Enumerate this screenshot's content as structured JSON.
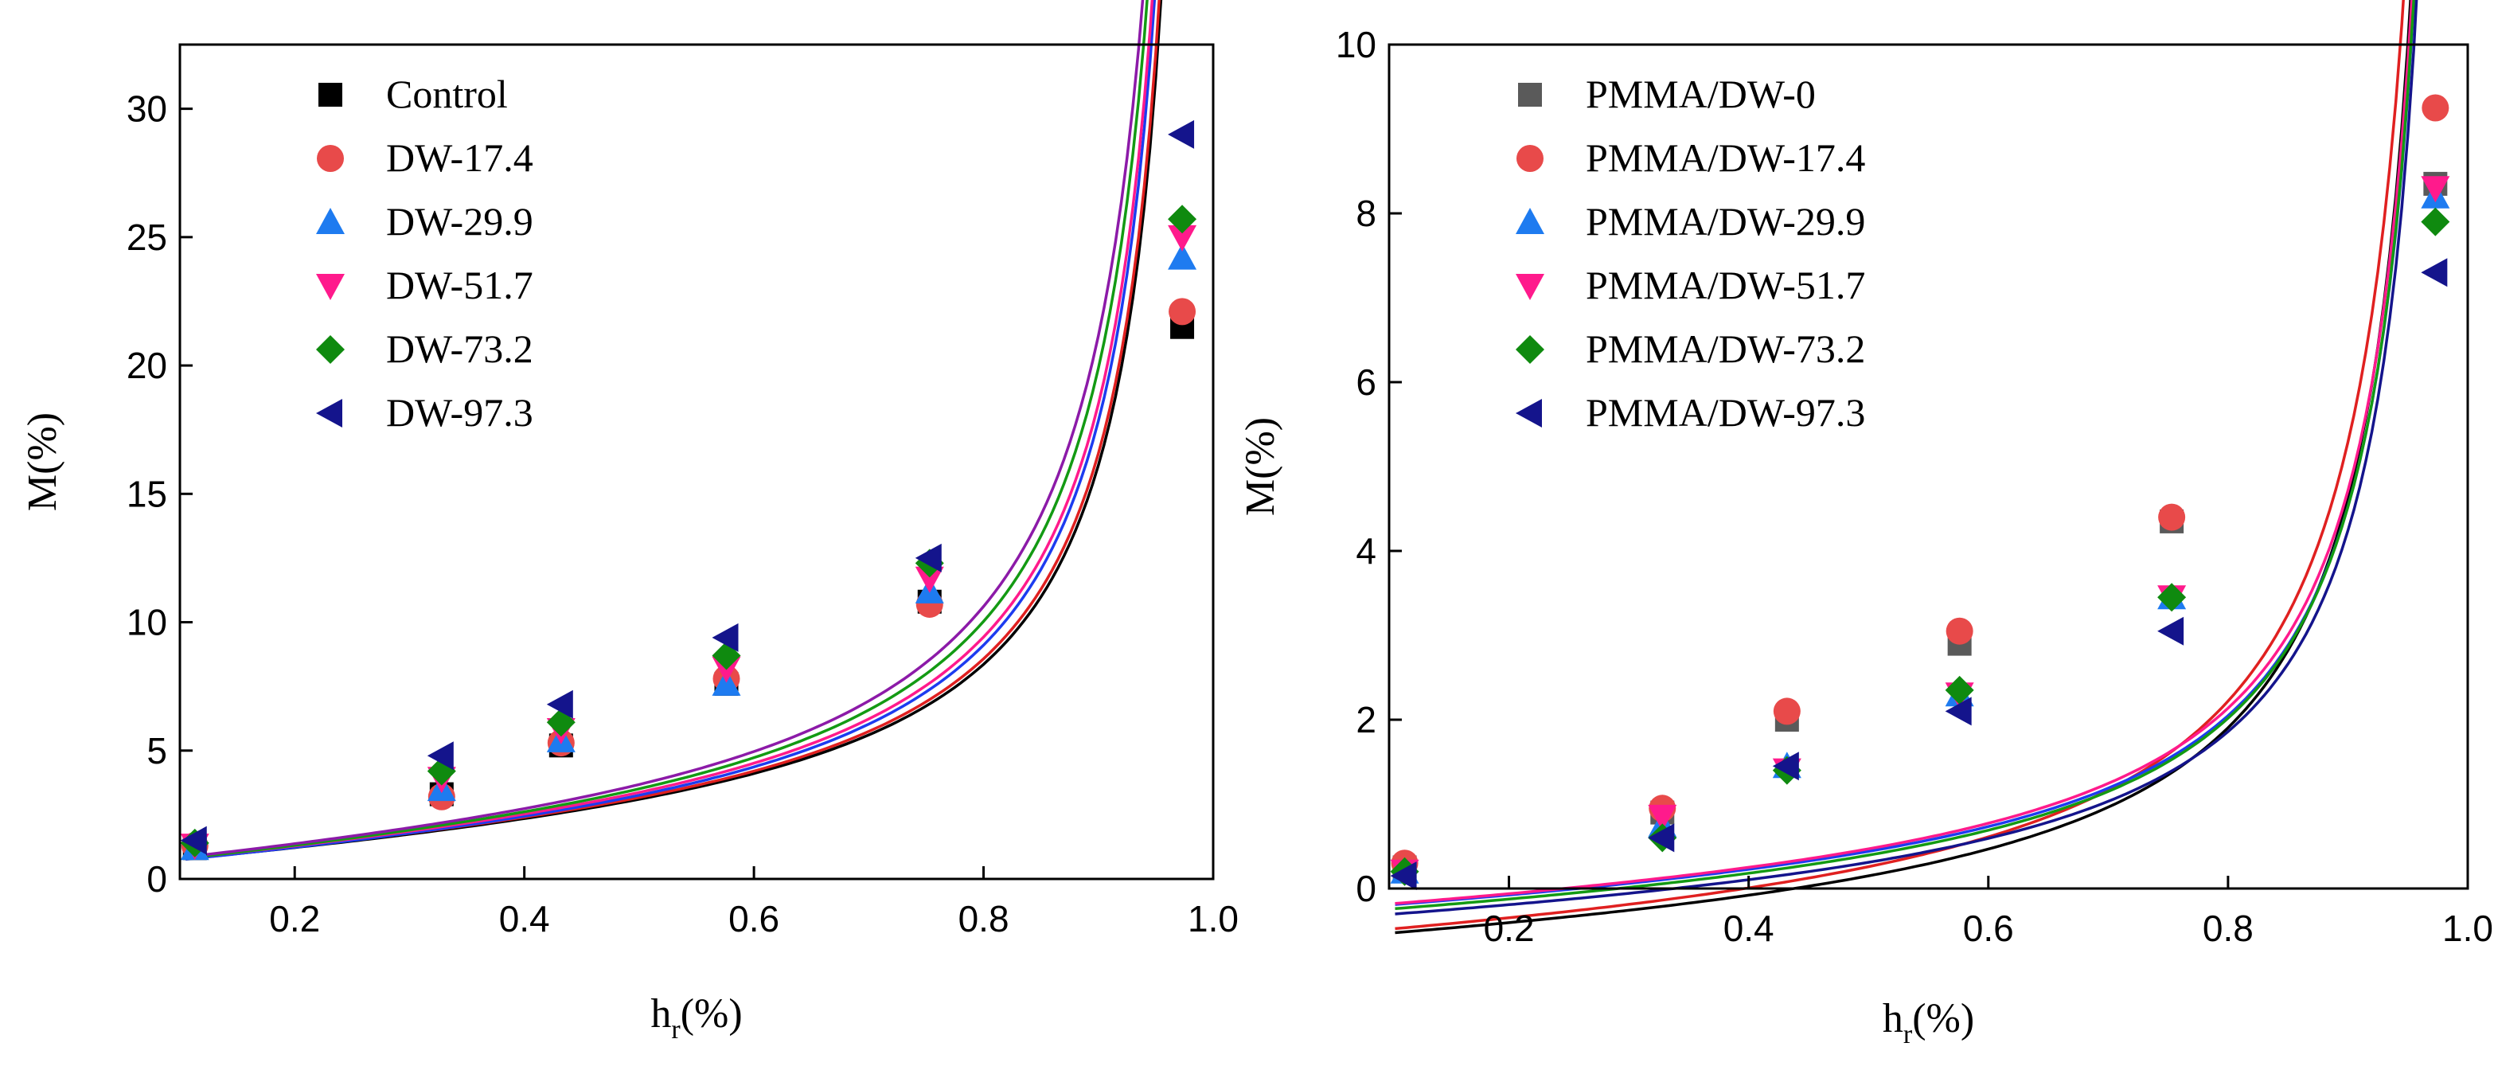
{
  "chart_data": [
    {
      "type": "scatter",
      "title": "",
      "xlabel": "h",
      "xlabel_sub": "r",
      "xlabel_unit": "(%)",
      "ylabel": "M(%)",
      "xlim": [
        0.1,
        1.0
      ],
      "ylim": [
        0,
        32.5
      ],
      "xticks": [
        0.2,
        0.4,
        0.6,
        0.8,
        1.0
      ],
      "xtick_labels": [
        "0.2",
        "0.4",
        "0.6",
        "0.8",
        "1.0"
      ],
      "yticks": [
        0,
        5,
        10,
        15,
        20,
        25,
        30
      ],
      "ytick_labels": [
        "0",
        "5",
        "10",
        "15",
        "20",
        "25",
        "30"
      ],
      "legend_position": "top-left",
      "grid": false,
      "x": [
        0.113,
        0.328,
        0.432,
        0.576,
        0.753,
        0.973
      ],
      "series": [
        {
          "name": "Control",
          "marker": "square",
          "color": "#000000",
          "fit_color": "#000000",
          "values": [
            1.2,
            3.3,
            5.2,
            7.6,
            10.8,
            21.5
          ],
          "fit_a": 1.53,
          "fit_b": 0.34
        },
        {
          "name": "DW-17.4",
          "marker": "circle",
          "color": "#e84a4a",
          "fit_color": "#e02020",
          "values": [
            1.3,
            3.2,
            5.3,
            7.8,
            10.7,
            22.1
          ],
          "fit_a": 1.58,
          "fit_b": 0.36
        },
        {
          "name": "DW-29.9",
          "marker": "triangle-up",
          "color": "#1e7bf0",
          "fit_color": "#1c3cf0",
          "values": [
            1.2,
            3.5,
            5.4,
            7.6,
            11.2,
            24.2
          ],
          "fit_a": 1.73,
          "fit_b": 0.3
        },
        {
          "name": "DW-51.7",
          "marker": "triangle-down",
          "color": "#ff1a8c",
          "fit_color": "#ff1a8c",
          "values": [
            1.3,
            3.9,
            5.8,
            8.2,
            11.7,
            25.0
          ],
          "fit_a": 1.8,
          "fit_b": 0.34
        },
        {
          "name": "DW-73.2",
          "marker": "diamond",
          "color": "#0f8a0f",
          "fit_color": "#139a13",
          "values": [
            1.4,
            4.2,
            6.1,
            8.7,
            12.3,
            25.7
          ],
          "fit_a": 1.96,
          "fit_b": 0.32
        },
        {
          "name": "DW-97.3",
          "marker": "triangle-left",
          "color": "#14148c",
          "fit_color": "#8c1aa8",
          "values": [
            1.5,
            4.8,
            6.8,
            9.4,
            12.5,
            29.0
          ],
          "fit_a": 2.1,
          "fit_b": 0.35
        }
      ]
    },
    {
      "type": "scatter",
      "title": "",
      "xlabel": "h",
      "xlabel_sub": "r",
      "xlabel_unit": "(%)",
      "ylabel": "M(%)",
      "xlim": [
        0.1,
        1.0
      ],
      "ylim": [
        0,
        10
      ],
      "xticks": [
        0.2,
        0.4,
        0.6,
        0.8,
        1.0
      ],
      "xtick_labels": [
        "0.2",
        "0.4",
        "0.6",
        "0.8",
        "1.0"
      ],
      "yticks": [
        0,
        2,
        4,
        6,
        8,
        10
      ],
      "ytick_labels": [
        "0",
        "2",
        "4",
        "6",
        "8",
        "10"
      ],
      "legend_position": "top-left",
      "grid": false,
      "x": [
        0.113,
        0.328,
        0.432,
        0.576,
        0.753,
        0.973
      ],
      "series": [
        {
          "name": "PMMA/DW-0",
          "marker": "square",
          "color": "#5a5a5a",
          "fit_color": "#000000",
          "values": [
            0.25,
            0.9,
            2.0,
            2.9,
            4.35,
            8.35
          ],
          "fit_a": 0.545,
          "fit_b": -0.64
        },
        {
          "name": "PMMA/DW-17.4",
          "marker": "circle",
          "color": "#e84a4a",
          "fit_color": "#e02020",
          "values": [
            0.3,
            0.95,
            2.1,
            3.05,
            4.4,
            9.25
          ],
          "fit_a": 0.615,
          "fit_b": -0.6
        },
        {
          "name": "PMMA/DW-29.9",
          "marker": "triangle-up",
          "color": "#1e7bf0",
          "fit_color": "#1c3cf0",
          "values": [
            0.2,
            0.75,
            1.45,
            2.3,
            3.45,
            8.2
          ],
          "fit_a": 0.495,
          "fit_b": -0.3
        },
        {
          "name": "PMMA/DW-51.7",
          "marker": "triangle-down",
          "color": "#ff1a8c",
          "fit_color": "#ff1a8c",
          "values": [
            0.2,
            0.85,
            1.4,
            2.3,
            3.45,
            8.3
          ],
          "fit_a": 0.515,
          "fit_b": -0.29
        },
        {
          "name": "PMMA/DW-73.2",
          "marker": "diamond",
          "color": "#0f8a0f",
          "fit_color": "#139a13",
          "values": [
            0.2,
            0.6,
            1.4,
            2.35,
            3.45,
            7.9
          ],
          "fit_a": 0.5,
          "fit_b": -0.35
        },
        {
          "name": "PMMA/DW-97.3",
          "marker": "triangle-left",
          "color": "#14148c",
          "fit_color": "#14148c",
          "values": [
            0.15,
            0.6,
            1.45,
            2.1,
            3.05,
            7.3
          ],
          "fit_a": 0.475,
          "fit_b": -0.41
        }
      ]
    }
  ]
}
